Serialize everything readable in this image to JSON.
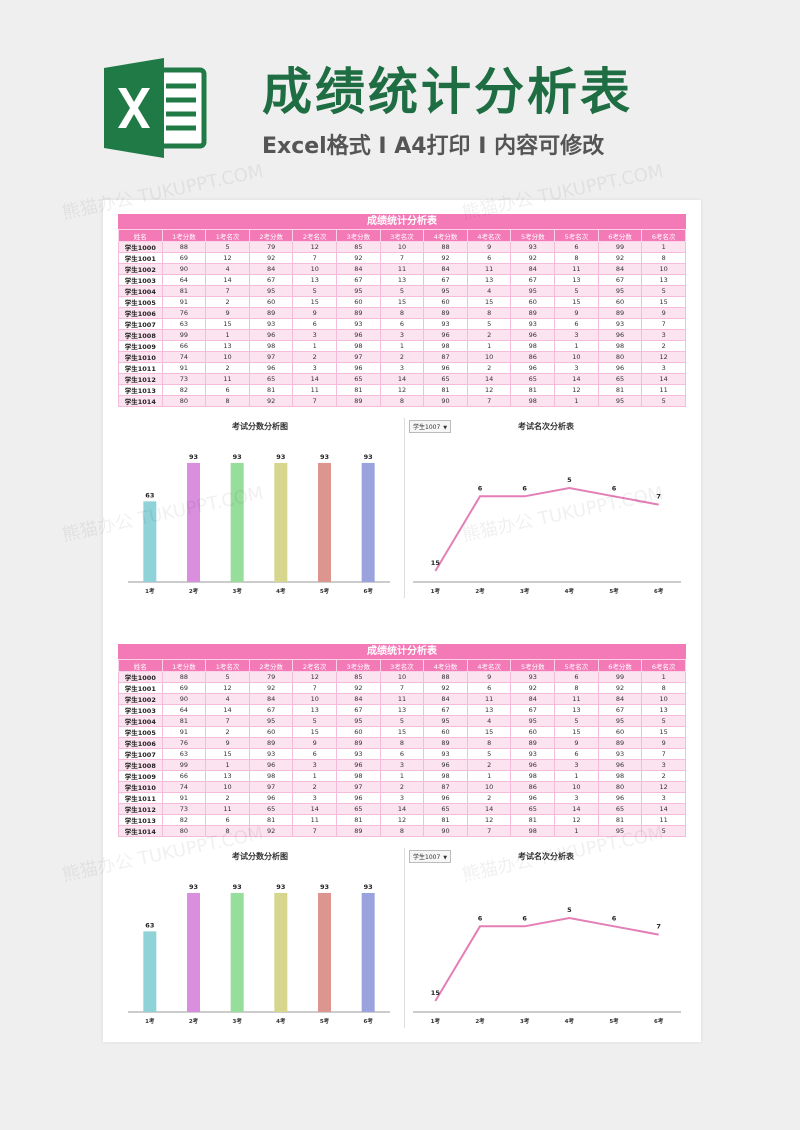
{
  "hero": {
    "title": "成绩统计分析表",
    "subtitle": "Excel格式 I A4打印 I 内容可修改"
  },
  "sheet": {
    "title": "成绩统计分析表",
    "headers": [
      "姓名",
      "1考分数",
      "1考名次",
      "2考分数",
      "2考名次",
      "3考分数",
      "3考名次",
      "4考分数",
      "4考名次",
      "5考分数",
      "5考名次",
      "6考分数",
      "6考名次"
    ],
    "rows": [
      [
        "学生1000",
        "88",
        "5",
        "79",
        "12",
        "85",
        "10",
        "88",
        "9",
        "93",
        "6",
        "99",
        "1"
      ],
      [
        "学生1001",
        "69",
        "12",
        "92",
        "7",
        "92",
        "7",
        "92",
        "6",
        "92",
        "8",
        "92",
        "8"
      ],
      [
        "学生1002",
        "90",
        "4",
        "84",
        "10",
        "84",
        "11",
        "84",
        "11",
        "84",
        "11",
        "84",
        "10"
      ],
      [
        "学生1003",
        "64",
        "14",
        "67",
        "13",
        "67",
        "13",
        "67",
        "13",
        "67",
        "13",
        "67",
        "13"
      ],
      [
        "学生1004",
        "81",
        "7",
        "95",
        "5",
        "95",
        "5",
        "95",
        "4",
        "95",
        "5",
        "95",
        "5"
      ],
      [
        "学生1005",
        "91",
        "2",
        "60",
        "15",
        "60",
        "15",
        "60",
        "15",
        "60",
        "15",
        "60",
        "15"
      ],
      [
        "学生1006",
        "76",
        "9",
        "89",
        "9",
        "89",
        "8",
        "89",
        "8",
        "89",
        "9",
        "89",
        "9"
      ],
      [
        "学生1007",
        "63",
        "15",
        "93",
        "6",
        "93",
        "6",
        "93",
        "5",
        "93",
        "6",
        "93",
        "7"
      ],
      [
        "学生1008",
        "99",
        "1",
        "96",
        "3",
        "96",
        "3",
        "96",
        "2",
        "96",
        "3",
        "96",
        "3"
      ],
      [
        "学生1009",
        "66",
        "13",
        "98",
        "1",
        "98",
        "1",
        "98",
        "1",
        "98",
        "1",
        "98",
        "2"
      ],
      [
        "学生1010",
        "74",
        "10",
        "97",
        "2",
        "97",
        "2",
        "87",
        "10",
        "86",
        "10",
        "80",
        "12"
      ],
      [
        "学生1011",
        "91",
        "2",
        "96",
        "3",
        "96",
        "3",
        "96",
        "2",
        "96",
        "3",
        "96",
        "3"
      ],
      [
        "学生1012",
        "73",
        "11",
        "65",
        "14",
        "65",
        "14",
        "65",
        "14",
        "65",
        "14",
        "65",
        "14"
      ],
      [
        "学生1013",
        "82",
        "6",
        "81",
        "11",
        "81",
        "12",
        "81",
        "12",
        "81",
        "12",
        "81",
        "11"
      ],
      [
        "学生1014",
        "80",
        "8",
        "92",
        "7",
        "89",
        "8",
        "90",
        "7",
        "98",
        "1",
        "95",
        "5"
      ]
    ]
  },
  "selector_value": "学生1007",
  "chart_data": [
    {
      "type": "bar",
      "title": "考试分数分析图",
      "categories": [
        "1考",
        "2考",
        "3考",
        "4考",
        "5考",
        "6考"
      ],
      "values": [
        63,
        93,
        93,
        93,
        93,
        93
      ],
      "ylim": [
        0,
        100
      ],
      "colors": [
        "#8fd3d8",
        "#d98fdd",
        "#97dd9c",
        "#d6d78d",
        "#dc958f",
        "#9aa3dd"
      ]
    },
    {
      "type": "line",
      "title": "考试名次分析表",
      "categories": [
        "1考",
        "2考",
        "3考",
        "4考",
        "5考",
        "6考"
      ],
      "values": [
        15,
        6,
        6,
        5,
        6,
        7
      ],
      "reversed_axis": true,
      "color": "#e37fb6"
    }
  ],
  "watermark": "熊猫办公 TUKUPPT.COM"
}
